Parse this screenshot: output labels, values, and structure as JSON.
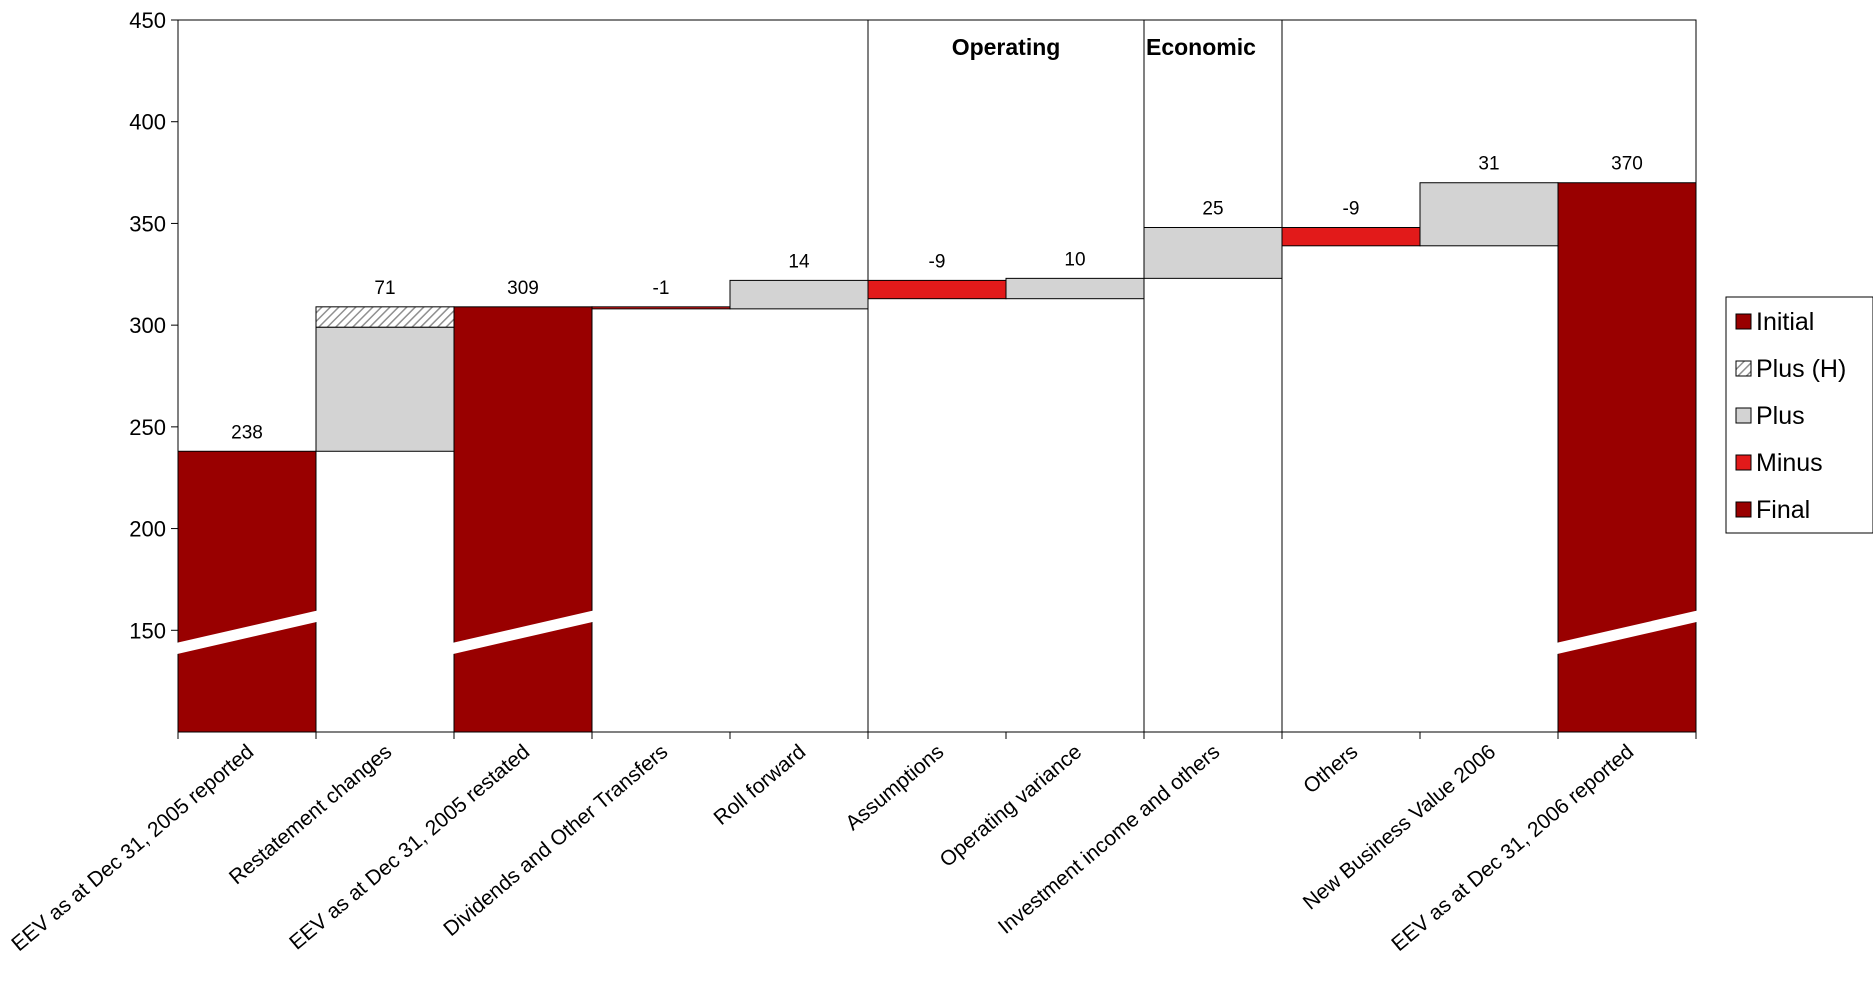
{
  "chart_data": {
    "type": "waterfall",
    "title": "",
    "xlabel": "",
    "ylabel": "",
    "ylim": [
      100,
      450
    ],
    "yticks": [
      150,
      200,
      250,
      300,
      350,
      400,
      450
    ],
    "grid": false,
    "legend_position": "right",
    "colors": {
      "Initial": "#990000",
      "Plus (H)": "#ffffff",
      "Plus": "#d3d3d3",
      "Minus": "#e21a1a",
      "Final": "#990000"
    },
    "legend": [
      "Initial",
      "Plus (H)",
      "Plus",
      "Minus",
      "Final"
    ],
    "sections": [
      {
        "label": "Operating"
      },
      {
        "label": "Economic"
      }
    ],
    "categories": [
      "EEV as at Dec 31, 2005 reported",
      "Restatement changes",
      "EEV as at Dec 31, 2005 restated",
      "Dividends and Other Transfers",
      "Roll forward",
      "Assumptions",
      "Operating variance",
      "Investment  income and others",
      "Others",
      "New Business  Value 2006",
      "EEV as at Dec 31, 2006 reported"
    ],
    "bars": [
      {
        "start": 0,
        "end": 238,
        "kind": "Initial",
        "label": "238"
      },
      {
        "start": 238,
        "end": 309,
        "kind": "Plus",
        "label": "71",
        "hatched_from": 299
      },
      {
        "start": 0,
        "end": 309,
        "kind": "Initial",
        "label": "309"
      },
      {
        "start": 309,
        "end": 308,
        "kind": "Minus",
        "label": "-1"
      },
      {
        "start": 308,
        "end": 322,
        "kind": "Plus",
        "label": "14"
      },
      {
        "start": 322,
        "end": 313,
        "kind": "Minus",
        "label": "-9"
      },
      {
        "start": 313,
        "end": 323,
        "kind": "Plus",
        "label": "10"
      },
      {
        "start": 323,
        "end": 348,
        "kind": "Plus",
        "label": "25"
      },
      {
        "start": 348,
        "end": 339,
        "kind": "Minus",
        "label": "-9"
      },
      {
        "start": 339,
        "end": 370,
        "kind": "Plus",
        "label": "31"
      },
      {
        "start": 0,
        "end": 370,
        "kind": "Final",
        "label": "370"
      }
    ]
  }
}
